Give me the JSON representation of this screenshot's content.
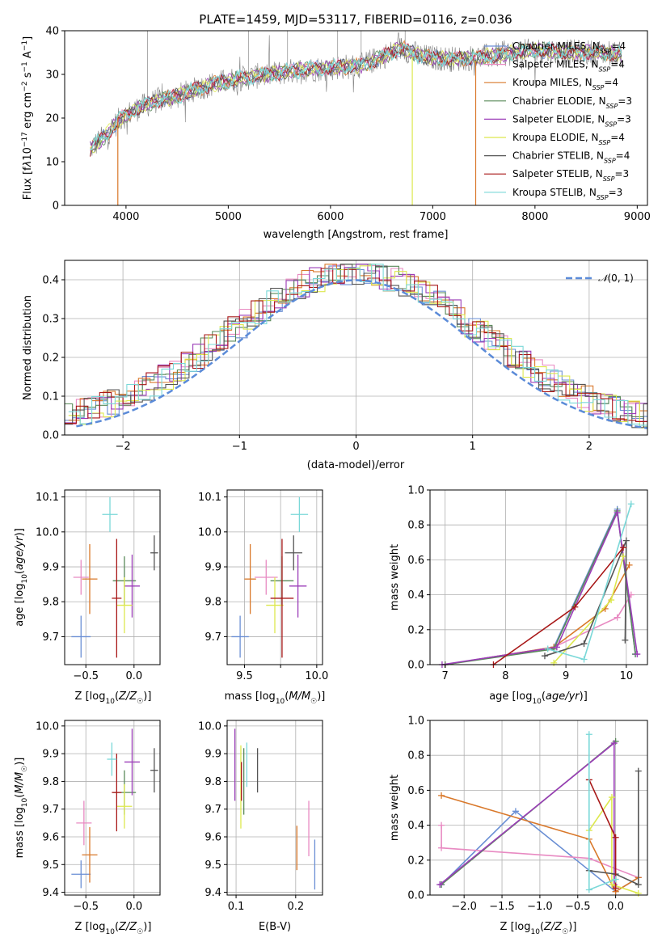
{
  "chart_data": [
    {
      "type": "line",
      "title": "PLATE=1459, MJD=53117, FIBERID=0116, z=0.036",
      "xlabel": "wavelength [Angstrom, rest frame]",
      "ylabel": "Flux [f_λ10^-17 erg cm^-2 s^-1 A^-1]",
      "xlim": [
        3400,
        9100
      ],
      "ylim": [
        0,
        40
      ],
      "xticks": [
        4000,
        5000,
        6000,
        7000,
        8000,
        9000
      ],
      "yticks": [
        0,
        10,
        20,
        30,
        40
      ],
      "legend_position": "top-right",
      "series": [
        {
          "name": "Chabrier MILES, N_SSP=4",
          "color": "#6a8fd4"
        },
        {
          "name": "Salpeter MILES, N_SSP=4",
          "color": "#e88ac2"
        },
        {
          "name": "Kroupa MILES, N_SSP=4",
          "color": "#d9782a"
        },
        {
          "name": "Chabrier ELODIE, N_SSP=3",
          "color": "#5a8a5a"
        },
        {
          "name": "Salpeter ELODIE, N_SSP=3",
          "color": "#9b3db8"
        },
        {
          "name": "Kroupa ELODIE, N_SSP=4",
          "color": "#dde84e"
        },
        {
          "name": "Chabrier STELIB, N_SSP=4",
          "color": "#555555"
        },
        {
          "name": "Salpeter STELIB, N_SSP=3",
          "color": "#a81818"
        },
        {
          "name": "Kroupa STELIB, N_SSP=3",
          "color": "#7ad8d8"
        }
      ],
      "continuum": {
        "x": [
          3650,
          3800,
          3950,
          4100,
          4300,
          4500,
          4800,
          5100,
          5400,
          5700,
          6000,
          6300,
          6600,
          6700,
          6900,
          7200,
          7500,
          7800,
          8100,
          8400,
          8700,
          8850
        ],
        "y": [
          13,
          16,
          20,
          22,
          24,
          25,
          27.5,
          29,
          30,
          31,
          31.5,
          32,
          35,
          36,
          34,
          33.5,
          34,
          35,
          35.5,
          35,
          35,
          34.5
        ]
      }
    },
    {
      "type": "bar",
      "xlabel": "(data-model)/error",
      "ylabel": "Normed distribution",
      "xlim": [
        -2.5,
        2.5
      ],
      "ylim": [
        0,
        0.45
      ],
      "xticks": [
        -2,
        -1,
        0,
        1,
        2
      ],
      "yticks": [
        0.0,
        0.1,
        0.2,
        0.3,
        0.4
      ],
      "grid": true,
      "legend_position": "top-right",
      "legend": "N(0,1)",
      "normal_curve": {
        "mean": 0,
        "std": 1,
        "color": "#5b8bd8"
      }
    },
    {
      "type": "scatter",
      "xlabel": "Z [log10(Z/Z⊙)]",
      "ylabel": "age  [log10(age/yr)]",
      "xlim": [
        -0.72,
        0.27
      ],
      "ylim": [
        9.62,
        10.12
      ],
      "xticks": [
        -0.5,
        0.0
      ],
      "yticks": [
        9.7,
        9.8,
        9.9,
        10.0,
        10.1
      ],
      "grid": true,
      "points": [
        {
          "x": -0.55,
          "y": 9.7,
          "xerr": 0.1,
          "yerr": 0.06,
          "color": "#6a8fd4"
        },
        {
          "x": -0.55,
          "y": 9.87,
          "xerr": 0.08,
          "yerr": 0.05,
          "color": "#e88ac2"
        },
        {
          "x": -0.46,
          "y": 9.865,
          "xerr": 0.08,
          "yerr": 0.1,
          "color": "#d9782a"
        },
        {
          "x": -0.1,
          "y": 9.86,
          "xerr": 0.12,
          "yerr": 0.07,
          "color": "#5a8a5a"
        },
        {
          "x": -0.02,
          "y": 9.845,
          "xerr": 0.08,
          "yerr": 0.09,
          "color": "#9b3db8"
        },
        {
          "x": -0.1,
          "y": 9.79,
          "xerr": 0.08,
          "yerr": 0.08,
          "color": "#dde84e"
        },
        {
          "x": 0.21,
          "y": 9.94,
          "xerr": 0.04,
          "yerr": 0.05,
          "color": "#555555"
        },
        {
          "x": -0.18,
          "y": 9.81,
          "xerr": 0.05,
          "yerr": 0.17,
          "color": "#a81818"
        },
        {
          "x": -0.25,
          "y": 10.05,
          "xerr": 0.08,
          "yerr": 0.05,
          "color": "#7ad8d8"
        }
      ]
    },
    {
      "type": "scatter",
      "xlabel": "mass [log10(M/M⊙)]",
      "ylabel": "",
      "xlim": [
        9.38,
        10.04
      ],
      "ylim": [
        9.62,
        10.12
      ],
      "xticks": [
        9.5,
        9.75,
        10.0
      ],
      "xticklabels": [
        "9.5",
        "",
        "10.0"
      ],
      "yticks": [
        9.7,
        9.8,
        9.9,
        10.0,
        10.1
      ],
      "grid": true,
      "points": [
        {
          "x": 9.47,
          "y": 9.7,
          "xerr": 0.06,
          "yerr": 0.06,
          "color": "#6a8fd4"
        },
        {
          "x": 9.65,
          "y": 9.87,
          "xerr": 0.08,
          "yerr": 0.05,
          "color": "#e88ac2"
        },
        {
          "x": 9.54,
          "y": 9.865,
          "xerr": 0.04,
          "yerr": 0.1,
          "color": "#d9782a"
        },
        {
          "x": 9.76,
          "y": 9.86,
          "xerr": 0.08,
          "yerr": 0.07,
          "color": "#5a8a5a"
        },
        {
          "x": 9.87,
          "y": 9.845,
          "xerr": 0.06,
          "yerr": 0.09,
          "color": "#9b3db8"
        },
        {
          "x": 9.71,
          "y": 9.79,
          "xerr": 0.06,
          "yerr": 0.08,
          "color": "#dde84e"
        },
        {
          "x": 9.84,
          "y": 9.94,
          "xerr": 0.06,
          "yerr": 0.05,
          "color": "#555555"
        },
        {
          "x": 9.76,
          "y": 9.81,
          "xerr": 0.08,
          "yerr": 0.17,
          "color": "#a81818"
        },
        {
          "x": 9.88,
          "y": 10.05,
          "xerr": 0.06,
          "yerr": 0.05,
          "color": "#7ad8d8"
        }
      ]
    },
    {
      "type": "line",
      "xlabel": "age  [log10(age/yr)]",
      "ylabel": "mass weight",
      "xlim": [
        6.75,
        10.35
      ],
      "ylim": [
        0,
        1
      ],
      "xticks": [
        7,
        8,
        9,
        10
      ],
      "yticks": [
        0.0,
        0.2,
        0.4,
        0.6,
        0.8,
        1.0
      ],
      "grid": true,
      "series": [
        {
          "color": "#6a8fd4",
          "x": [
            7.0,
            8.8,
            9.85,
            10.15
          ],
          "y": [
            0.0,
            0.1,
            0.89,
            0.06
          ]
        },
        {
          "color": "#e88ac2",
          "x": [
            7.0,
            8.8,
            9.85,
            10.08
          ],
          "y": [
            0.0,
            0.1,
            0.27,
            0.4
          ]
        },
        {
          "color": "#d9782a",
          "x": [
            7.0,
            8.8,
            9.65,
            10.05
          ],
          "y": [
            0.0,
            0.1,
            0.32,
            0.57
          ]
        },
        {
          "color": "#5a8a5a",
          "x": [
            7.0,
            8.8,
            9.85,
            10.15
          ],
          "y": [
            0.0,
            0.09,
            0.88,
            0.06
          ]
        },
        {
          "color": "#9b3db8",
          "x": [
            6.95,
            8.85,
            9.85,
            10.18
          ],
          "y": [
            0.0,
            0.1,
            0.87,
            0.06
          ]
        },
        {
          "color": "#dde84e",
          "x": [
            8.8,
            9.75,
            9.95
          ],
          "y": [
            0.01,
            0.37,
            0.62
          ]
        },
        {
          "color": "#555555",
          "x": [
            8.65,
            9.3,
            10.0,
            9.98
          ],
          "y": [
            0.05,
            0.12,
            0.71,
            0.14
          ]
        },
        {
          "color": "#a81818",
          "x": [
            7.8,
            9.15,
            9.95
          ],
          "y": [
            0.0,
            0.33,
            0.67
          ]
        },
        {
          "color": "#7ad8d8",
          "x": [
            8.7,
            9.3,
            10.08
          ],
          "y": [
            0.09,
            0.03,
            0.92
          ]
        }
      ]
    },
    {
      "type": "scatter",
      "xlabel": "Z [log10(Z/Z⊙)]",
      "ylabel": "mass [log10(M/M⊙)]",
      "xlim": [
        -0.72,
        0.27
      ],
      "ylim": [
        9.39,
        10.02
      ],
      "xticks": [
        -0.5,
        0.0
      ],
      "yticks": [
        9.4,
        9.5,
        9.6,
        9.7,
        9.8,
        9.9,
        10.0
      ],
      "grid": true,
      "points": [
        {
          "x": -0.55,
          "y": 9.465,
          "xerr": 0.1,
          "yerr": 0.05,
          "color": "#6a8fd4"
        },
        {
          "x": -0.52,
          "y": 9.65,
          "xerr": 0.08,
          "yerr": 0.08,
          "color": "#e88ac2"
        },
        {
          "x": -0.46,
          "y": 9.535,
          "xerr": 0.08,
          "yerr": 0.1,
          "color": "#d9782a"
        },
        {
          "x": -0.1,
          "y": 9.76,
          "xerr": 0.12,
          "yerr": 0.08,
          "color": "#5a8a5a"
        },
        {
          "x": -0.02,
          "y": 9.87,
          "xerr": 0.08,
          "yerr": 0.12,
          "color": "#9b3db8"
        },
        {
          "x": -0.1,
          "y": 9.71,
          "xerr": 0.08,
          "yerr": 0.08,
          "color": "#dde84e"
        },
        {
          "x": 0.21,
          "y": 9.84,
          "xerr": 0.04,
          "yerr": 0.08,
          "color": "#555555"
        },
        {
          "x": -0.18,
          "y": 9.76,
          "xerr": 0.05,
          "yerr": 0.14,
          "color": "#a81818"
        },
        {
          "x": -0.23,
          "y": 9.88,
          "xerr": 0.05,
          "yerr": 0.06,
          "color": "#7ad8d8"
        }
      ]
    },
    {
      "type": "scatter",
      "xlabel": "E(B-V)",
      "ylabel": "",
      "xlim": [
        0.085,
        0.245
      ],
      "ylim": [
        9.39,
        10.02
      ],
      "xticks": [
        0.1,
        0.2
      ],
      "yticks": [
        9.4,
        9.5,
        9.6,
        9.7,
        9.8,
        9.9,
        10.0
      ],
      "grid": true,
      "points": [
        {
          "x": 0.232,
          "y": 9.5,
          "yerr": 0.09,
          "color": "#6a8fd4"
        },
        {
          "x": 0.222,
          "y": 9.63,
          "yerr": 0.1,
          "color": "#e88ac2"
        },
        {
          "x": 0.202,
          "y": 9.56,
          "yerr": 0.08,
          "color": "#d9782a"
        },
        {
          "x": 0.113,
          "y": 9.8,
          "yerr": 0.12,
          "color": "#5a8a5a"
        },
        {
          "x": 0.098,
          "y": 9.86,
          "yerr": 0.13,
          "color": "#9b3db8"
        },
        {
          "x": 0.108,
          "y": 9.78,
          "yerr": 0.15,
          "color": "#dde84e"
        },
        {
          "x": 0.136,
          "y": 9.84,
          "yerr": 0.08,
          "color": "#555555"
        },
        {
          "x": 0.109,
          "y": 9.8,
          "yerr": 0.07,
          "color": "#a81818"
        },
        {
          "x": 0.118,
          "y": 9.86,
          "yerr": 0.08,
          "color": "#7ad8d8"
        }
      ]
    },
    {
      "type": "line",
      "xlabel": "Z [log10(Z/Z⊙)]",
      "ylabel": "mass weight",
      "xlim": [
        -2.45,
        0.42
      ],
      "ylim": [
        0,
        1
      ],
      "xticks": [
        -2.0,
        -1.5,
        -1.0,
        -0.5,
        0.0
      ],
      "yticks": [
        0.0,
        0.2,
        0.4,
        0.6,
        0.8,
        1.0
      ],
      "grid": true,
      "series": [
        {
          "color": "#6a8fd4",
          "x": [
            -2.3,
            -1.32,
            0.0,
            0.3
          ],
          "y": [
            0.06,
            0.48,
            0.02,
            0.1
          ]
        },
        {
          "color": "#e88ac2",
          "x": [
            -2.3,
            -2.3,
            -0.35,
            0.3
          ],
          "y": [
            0.4,
            0.27,
            0.21,
            0.1
          ]
        },
        {
          "color": "#d9782a",
          "x": [
            -2.3,
            -0.35,
            0.0,
            0.3
          ],
          "y": [
            0.57,
            0.32,
            0.02,
            0.1
          ]
        },
        {
          "color": "#5a8a5a",
          "x": [
            -2.3,
            0.0
          ],
          "y": [
            0.06,
            0.88
          ]
        },
        {
          "color": "#9b3db8",
          "x": [
            -2.32,
            -0.02,
            -0.02
          ],
          "y": [
            0.06,
            0.87,
            0.06
          ]
        },
        {
          "color": "#dde84e",
          "x": [
            -0.35,
            -0.05,
            -0.05,
            0.3
          ],
          "y": [
            0.37,
            0.56,
            0.06,
            0.01
          ]
        },
        {
          "color": "#555555",
          "x": [
            -0.35,
            0.0,
            0.3,
            0.3
          ],
          "y": [
            0.14,
            0.12,
            0.06,
            0.71
          ]
        },
        {
          "color": "#a81818",
          "x": [
            -0.35,
            0.0,
            0.0
          ],
          "y": [
            0.66,
            0.33,
            0.04
          ]
        },
        {
          "color": "#7ad8d8",
          "x": [
            -0.35,
            -0.35,
            0.0
          ],
          "y": [
            0.92,
            0.03,
            0.09
          ]
        }
      ]
    }
  ]
}
